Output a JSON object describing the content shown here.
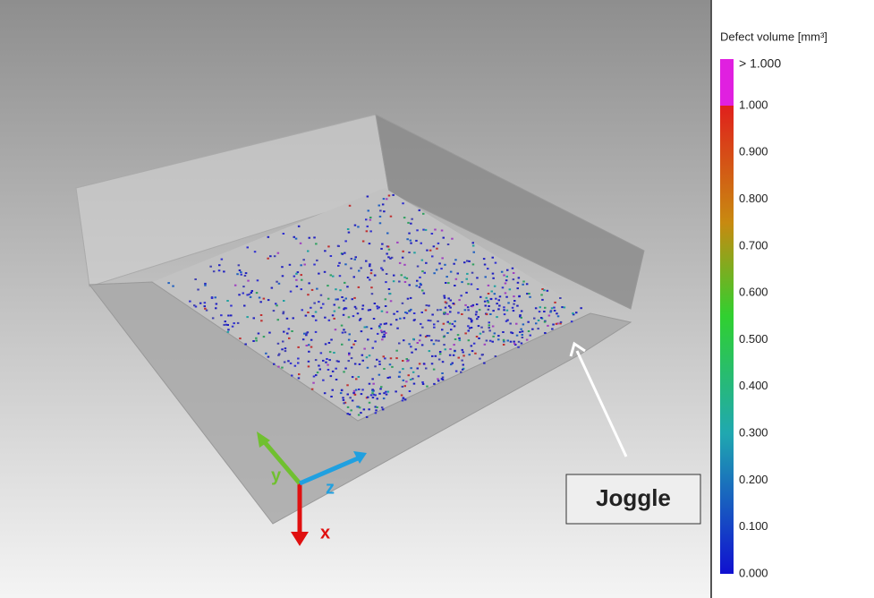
{
  "view": {
    "axes": {
      "x": "x",
      "y": "y",
      "z": "z"
    },
    "annotation": "Joggle"
  },
  "colorbar": {
    "title": "Defect volume [mm³]",
    "over_label": "> 1.000",
    "ticks": [
      "1.000",
      "0.900",
      "0.800",
      "0.700",
      "0.600",
      "0.500",
      "0.400",
      "0.300",
      "0.200",
      "0.100",
      "0.000"
    ]
  }
}
